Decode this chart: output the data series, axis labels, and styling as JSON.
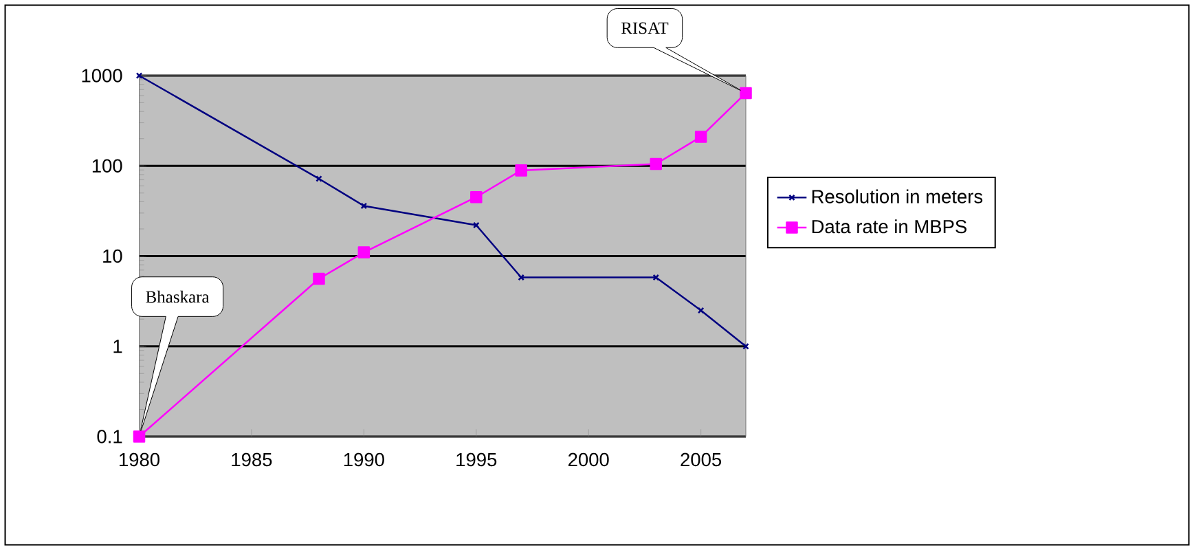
{
  "chart_data": {
    "type": "line",
    "x": [
      1980,
      1988,
      1990,
      1995,
      1997,
      2003,
      2005,
      2007
    ],
    "series": [
      {
        "name": "Resolution in meters",
        "color": "#000080",
        "marker": "cross",
        "values": [
          1000,
          72,
          36,
          22,
          5.8,
          5.8,
          2.5,
          1
        ]
      },
      {
        "name": "Data rate in MBPS",
        "color": "#ff00ff",
        "marker": "square",
        "values": [
          0.1,
          5.6,
          11,
          45,
          89,
          105,
          210,
          640
        ]
      }
    ],
    "log": "y",
    "xlim": [
      1980,
      2007
    ],
    "ylim": [
      0.1,
      1000
    ],
    "xticks": [
      1980,
      1985,
      1990,
      1995,
      2000,
      2005
    ],
    "yticks": [
      0.1,
      1,
      10,
      100,
      1000
    ],
    "grid": "y",
    "legend": "right",
    "annotations": [
      "Bhaskara",
      "RISAT"
    ]
  }
}
